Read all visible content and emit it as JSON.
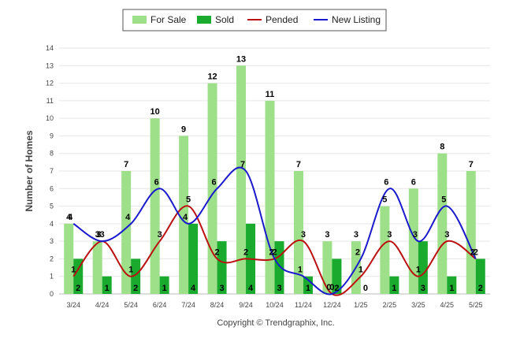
{
  "chart_data": {
    "type": "bar",
    "categories": [
      "3/24",
      "4/24",
      "5/24",
      "6/24",
      "7/24",
      "8/24",
      "9/24",
      "10/24",
      "11/24",
      "12/24",
      "1/25",
      "2/25",
      "3/25",
      "4/25",
      "5/25"
    ],
    "series": [
      {
        "name": "For Sale",
        "kind": "bar",
        "color": "#9ee08a",
        "values": [
          4,
          3,
          7,
          10,
          9,
          12,
          13,
          11,
          7,
          3,
          3,
          5,
          6,
          8,
          7
        ]
      },
      {
        "name": "Sold",
        "kind": "bar",
        "color": "#1aab2e",
        "values": [
          2,
          1,
          2,
          1,
          4,
          3,
          4,
          3,
          1,
          2,
          0,
          1,
          3,
          1,
          2
        ]
      },
      {
        "name": "Pended",
        "kind": "line",
        "color": "#bb1111",
        "values": [
          1,
          3,
          1,
          3,
          5,
          2,
          2,
          2,
          3,
          0,
          1,
          3,
          1,
          3,
          2
        ]
      },
      {
        "name": "New Listing",
        "kind": "line",
        "color": "#1a1acc",
        "values": [
          4,
          3,
          4,
          6,
          4,
          6,
          7,
          2,
          1,
          0,
          2,
          6,
          3,
          5,
          2
        ]
      }
    ],
    "ylabel": "Number of Homes",
    "ylim": [
      0,
      14
    ],
    "yticks": [
      "0",
      "1",
      "2",
      "3",
      "4",
      "5",
      "6",
      "7",
      "8",
      "9",
      "10",
      "11",
      "12",
      "13",
      "14"
    ],
    "grid": true,
    "legend_position": "top-center"
  },
  "copyright": "Copyright © Trendgraphix, Inc."
}
